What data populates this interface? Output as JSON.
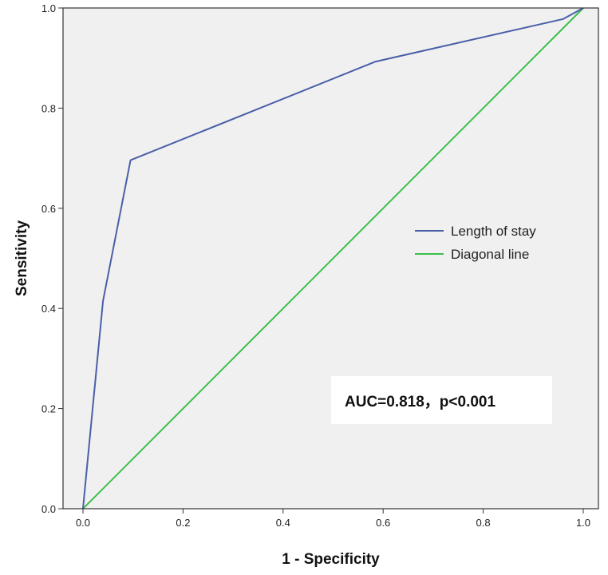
{
  "chart_data": {
    "type": "line",
    "xlabel": "1 - Specificity",
    "ylabel": "Sensitivity",
    "xlim": [
      0,
      1
    ],
    "ylim": [
      0,
      1
    ],
    "x_ticks": [
      "0.0",
      "0.2",
      "0.4",
      "0.6",
      "0.8",
      "1.0"
    ],
    "y_ticks": [
      "0.0",
      "0.2",
      "0.4",
      "0.6",
      "0.8",
      "1.0"
    ],
    "grid": false,
    "background_color": "#f0f0f0",
    "legend_position": "center-right",
    "series": [
      {
        "name": "Length of stay",
        "color": "#4a5fa8",
        "x": [
          0.0,
          0.04,
          0.095,
          0.585,
          0.96,
          1.0
        ],
        "y": [
          0.0,
          0.415,
          0.696,
          0.893,
          0.978,
          1.0
        ]
      },
      {
        "name": "Diagonal line",
        "color": "#3cbf4a",
        "x": [
          0.0,
          1.0
        ],
        "y": [
          0.0,
          1.0
        ]
      }
    ],
    "annotation": "AUC=0.818，p<0.001"
  }
}
